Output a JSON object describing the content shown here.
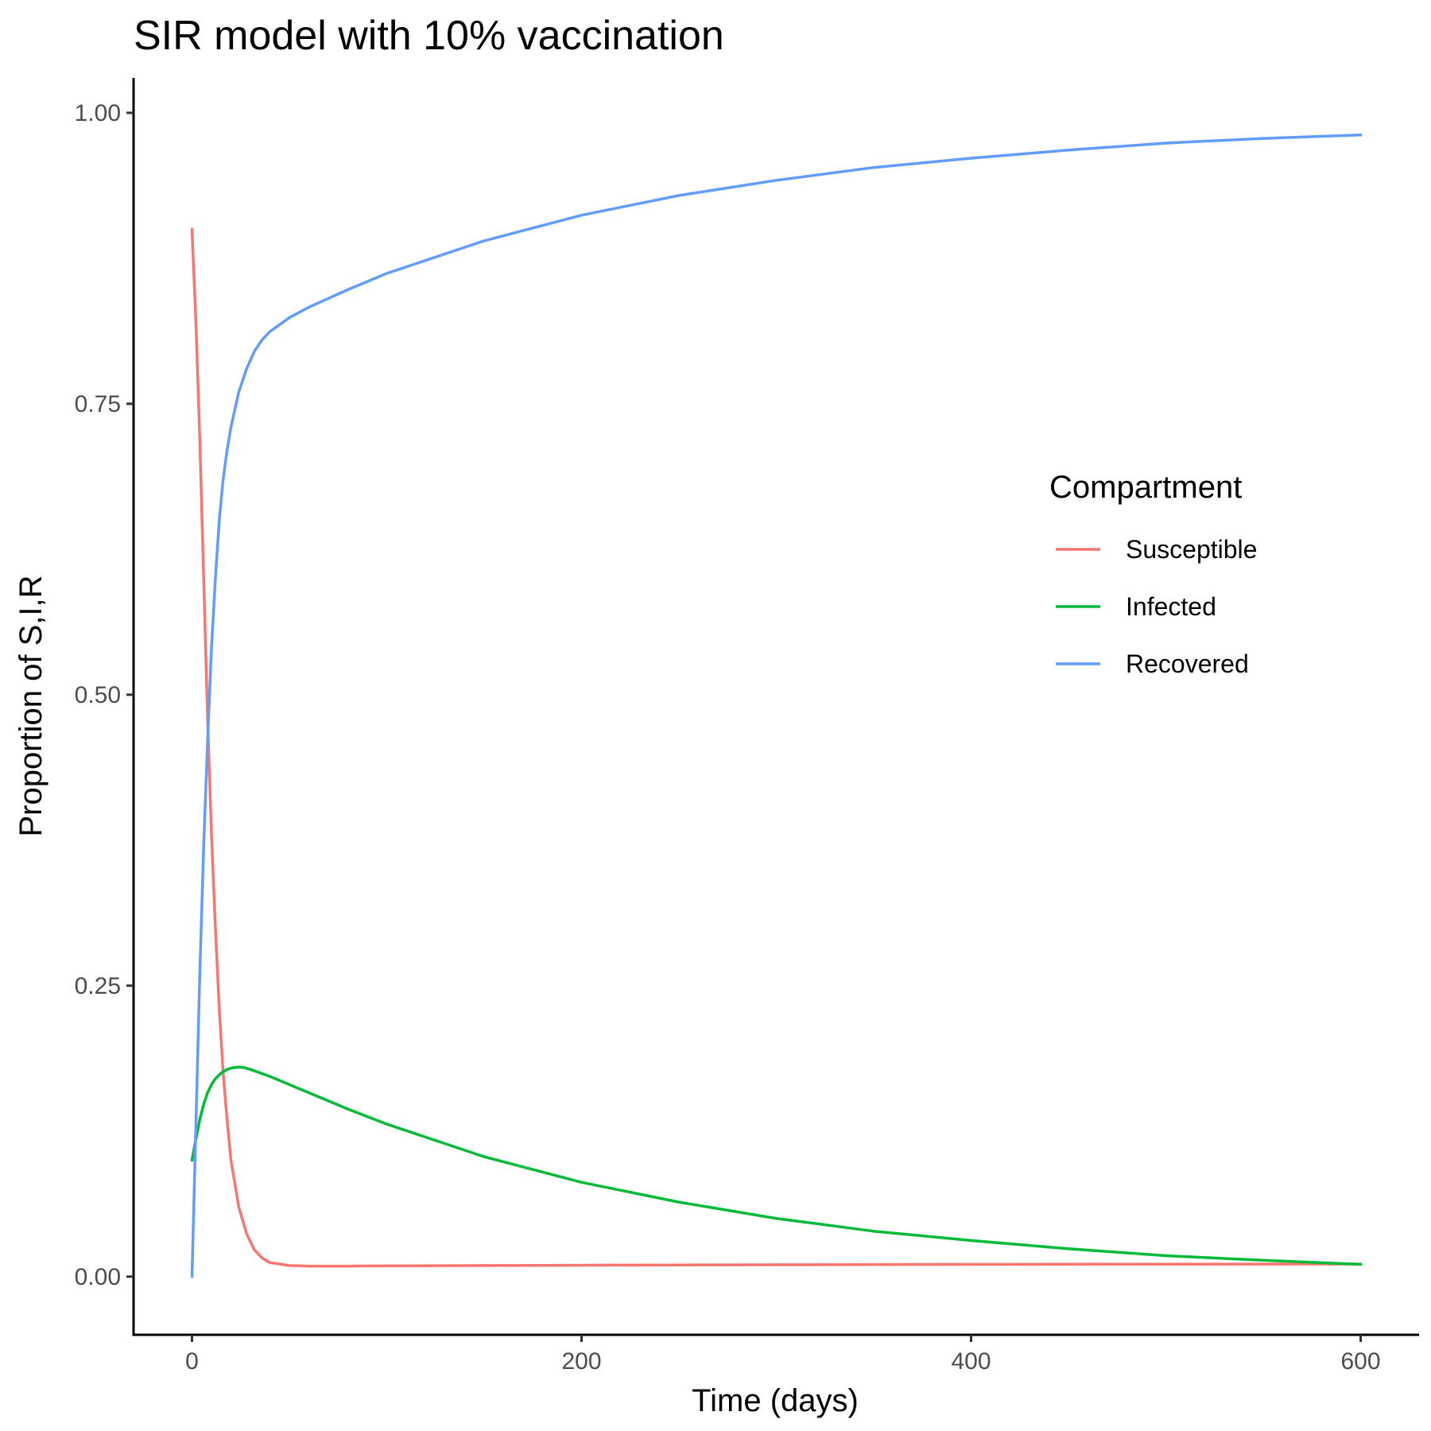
{
  "chart_data": {
    "type": "line",
    "title": "SIR model with 10% vaccination",
    "xlabel": "Time (days)",
    "ylabel": "Proportion of S,I,R",
    "xlim": [
      -30,
      630
    ],
    "ylim": [
      -0.05,
      1.03
    ],
    "x_ticks": [
      0,
      200,
      400,
      600
    ],
    "x_tick_labels": [
      "0",
      "200",
      "400",
      "600"
    ],
    "y_ticks": [
      0,
      0.25,
      0.5,
      0.75,
      1.0
    ],
    "y_tick_labels": [
      "0.00",
      "0.25",
      "0.50",
      "0.75",
      "1.00"
    ],
    "grid": false,
    "legend": {
      "title": "Compartment",
      "placement": "right"
    },
    "series": [
      {
        "name": "Susceptible",
        "color": "#F8766D",
        "x": [
          0,
          2,
          4,
          6,
          8,
          10,
          12,
          14,
          16,
          18,
          20,
          24,
          28,
          32,
          36,
          40,
          50,
          60,
          80,
          100,
          150,
          200,
          300,
          400,
          500,
          600
        ],
        "y": [
          0.9,
          0.82,
          0.72,
          0.6,
          0.48,
          0.38,
          0.3,
          0.23,
          0.175,
          0.135,
          0.1,
          0.06,
          0.037,
          0.023,
          0.016,
          0.012,
          0.0095,
          0.009,
          0.009,
          0.0092,
          0.0095,
          0.0098,
          0.0102,
          0.0105,
          0.0107,
          0.0108
        ]
      },
      {
        "name": "Infected",
        "color": "#00BA38",
        "x": [
          0,
          2,
          4,
          6,
          8,
          10,
          12,
          15,
          18,
          21,
          24,
          27,
          30,
          40,
          50,
          60,
          80,
          100,
          150,
          200,
          250,
          300,
          350,
          400,
          450,
          500,
          550,
          600
        ],
        "y": [
          0.1,
          0.118,
          0.135,
          0.148,
          0.158,
          0.165,
          0.17,
          0.175,
          0.178,
          0.1795,
          0.18,
          0.1795,
          0.178,
          0.172,
          0.165,
          0.158,
          0.144,
          0.131,
          0.103,
          0.081,
          0.064,
          0.05,
          0.039,
          0.031,
          0.024,
          0.018,
          0.014,
          0.0105
        ]
      },
      {
        "name": "Recovered",
        "color": "#619CFF",
        "x": [
          0,
          2,
          4,
          6,
          8,
          10,
          12,
          14,
          16,
          18,
          20,
          24,
          28,
          32,
          36,
          40,
          50,
          60,
          80,
          100,
          150,
          200,
          250,
          300,
          350,
          400,
          450,
          500,
          550,
          600
        ],
        "y": [
          0,
          0.13,
          0.26,
          0.37,
          0.46,
          0.54,
          0.6,
          0.65,
          0.685,
          0.71,
          0.73,
          0.76,
          0.78,
          0.795,
          0.805,
          0.812,
          0.824,
          0.833,
          0.848,
          0.862,
          0.89,
          0.912,
          0.929,
          0.942,
          0.953,
          0.961,
          0.968,
          0.974,
          0.978,
          0.981
        ]
      }
    ]
  }
}
